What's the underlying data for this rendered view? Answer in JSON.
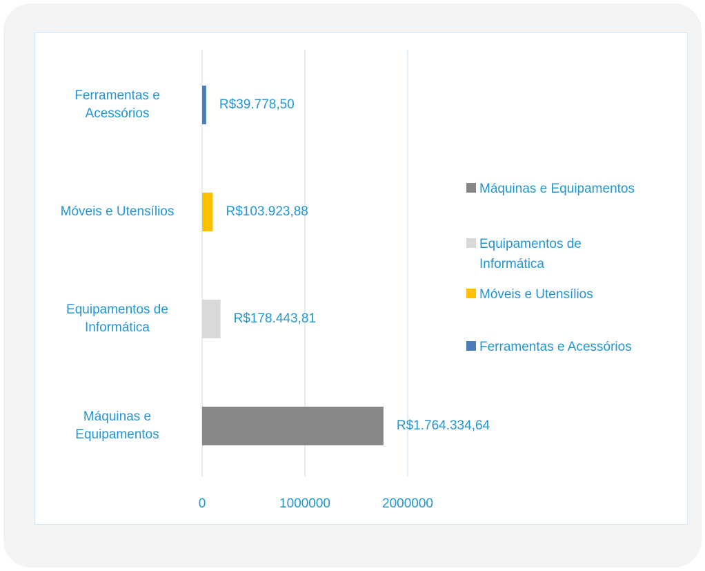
{
  "chart_data": {
    "type": "bar",
    "orientation": "horizontal",
    "categories": [
      "Máquinas e Equipamentos",
      "Equipamentos de Informática",
      "Móveis e Utensílios",
      "Ferramentas e Acessórios"
    ],
    "values": [
      1764334.64,
      178443.81,
      103923.88,
      39778.5
    ],
    "value_labels": [
      "R$1.764.334,64",
      "R$178.443,81",
      "R$103.923,88",
      "R$39.778,50"
    ],
    "colors": [
      "#878787",
      "#d9d9d9",
      "#ffc000",
      "#4a7ebb"
    ],
    "xlim": [
      0,
      2000000
    ],
    "xticks": [
      0,
      1000000,
      2000000
    ],
    "grid": true,
    "legend": "right"
  }
}
